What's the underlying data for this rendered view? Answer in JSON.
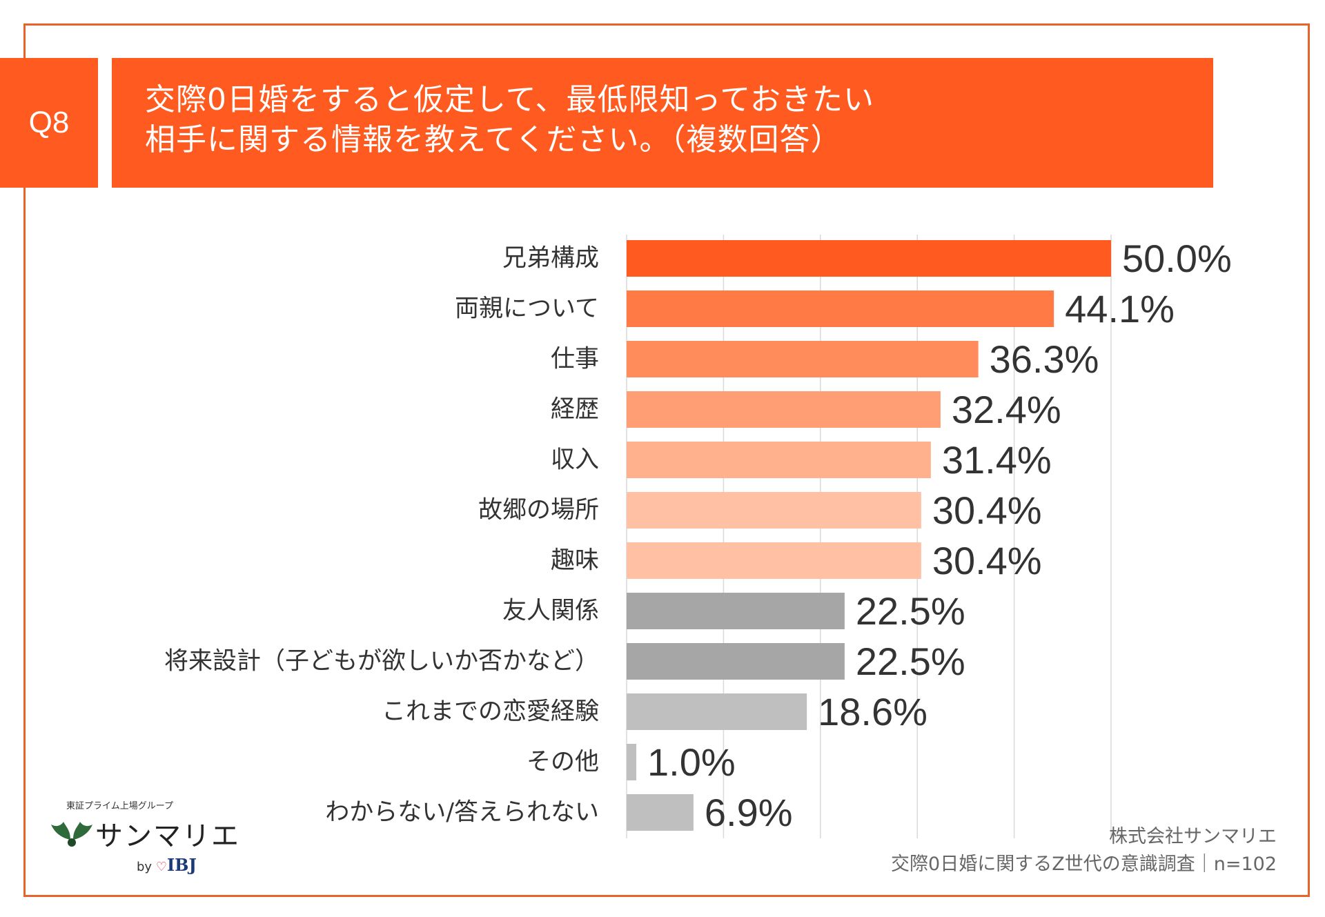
{
  "question": {
    "badge": "Q8",
    "line1": "交際0日婚をすると仮定して、最低限知っておきたい",
    "line2": "相手に関する情報を教えてください。（複数回答）"
  },
  "chart_data": {
    "type": "bar",
    "orientation": "horizontal",
    "xlim": [
      0,
      50
    ],
    "grid": true,
    "categories": [
      "兄弟構成",
      "両親について",
      "仕事",
      "経歴",
      "収入",
      "故郷の場所",
      "趣味",
      "友人関係",
      "将来設計（子どもが欲しいか否かなど）",
      "これまでの恋愛経験",
      "その他",
      "わからない/答えられない"
    ],
    "values": [
      50.0,
      44.1,
      36.3,
      32.4,
      31.4,
      30.4,
      30.4,
      22.5,
      22.5,
      18.6,
      1.0,
      6.9
    ],
    "value_labels": [
      "50.0%",
      "44.1%",
      "36.3%",
      "32.4%",
      "31.4%",
      "30.4%",
      "30.4%",
      "22.5%",
      "22.5%",
      "18.6%",
      "1.0%",
      "6.9%"
    ],
    "bar_colors": [
      "#ff5a1f",
      "#ff7a45",
      "#ff8c5a",
      "#ff9e75",
      "#ffb08c",
      "#ffc0a3",
      "#ffc0a3",
      "#a6a6a6",
      "#a6a6a6",
      "#bfbfbf",
      "#bfbfbf",
      "#bfbfbf"
    ]
  },
  "source": {
    "company": "株式会社サンマリエ",
    "survey": "交際0日婚に関するZ世代の意識調査｜n=102"
  },
  "logo": {
    "group": "東証プライム上場グループ",
    "name": "サンマリエ",
    "by": "by",
    "brand": "IBJ"
  },
  "colors": {
    "accent": "#ff5a1f",
    "frame": "#e8622a"
  }
}
